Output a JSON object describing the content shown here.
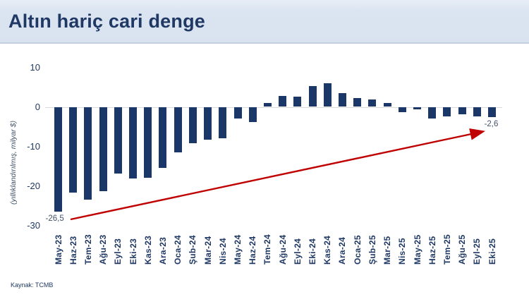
{
  "header": {
    "title": "Altın hariç cari denge"
  },
  "footer": {
    "source": "Kaynak: TCMB"
  },
  "chart_data": {
    "type": "bar",
    "title": "Altın hariç cari denge",
    "ylabel": "(yıllıklandırılmış, milyar $)",
    "xlabel": "",
    "ylim": [
      -30,
      10
    ],
    "yticks": [
      10,
      0,
      -10,
      -20,
      -30
    ],
    "grid": false,
    "legend": false,
    "colors": {
      "bar": "#1b3767",
      "arrow": "#c00000",
      "axis_text": "#1f3864",
      "zero_line": "#d9d9d9",
      "annotation_text": "#44546a",
      "title_text": "#1f3864",
      "header_bg": "#dbe5f1"
    },
    "categories": [
      "May-23",
      "Haz-23",
      "Tem-23",
      "Ağu-23",
      "Eyl-23",
      "Eki-23",
      "Kas-23",
      "Ara-23",
      "Oca-24",
      "Şub-24",
      "Mar-24",
      "Nis-24",
      "May-24",
      "Haz-24",
      "Tem-24",
      "Ağu-24",
      "Eyl-24",
      "Eki-24",
      "Kas-24",
      "Ara-24",
      "Oca-25",
      "Şub-25",
      "Mar-25",
      "Nis-25",
      "May-25",
      "Haz-25",
      "Tem-25",
      "Ağu-25",
      "Eyl-25",
      "Eki-25"
    ],
    "values": [
      -26.5,
      -21.7,
      -23.5,
      -21.4,
      -16.8,
      -18.1,
      -18.0,
      -15.5,
      -11.6,
      -9.2,
      -8.3,
      -7.9,
      -2.9,
      -3.9,
      0.9,
      2.8,
      2.6,
      5.2,
      5.9,
      3.4,
      2.2,
      1.8,
      0.9,
      -1.3,
      -0.7,
      -2.9,
      -2.4,
      -1.9,
      -2.4,
      -2.6
    ],
    "data_labels": [
      {
        "index": 0,
        "text": "-26,5"
      },
      {
        "index": 29,
        "text": "-2,6"
      }
    ],
    "trend_arrow": {
      "from_index": 0,
      "to_index": 29,
      "color": "#c00000"
    }
  }
}
